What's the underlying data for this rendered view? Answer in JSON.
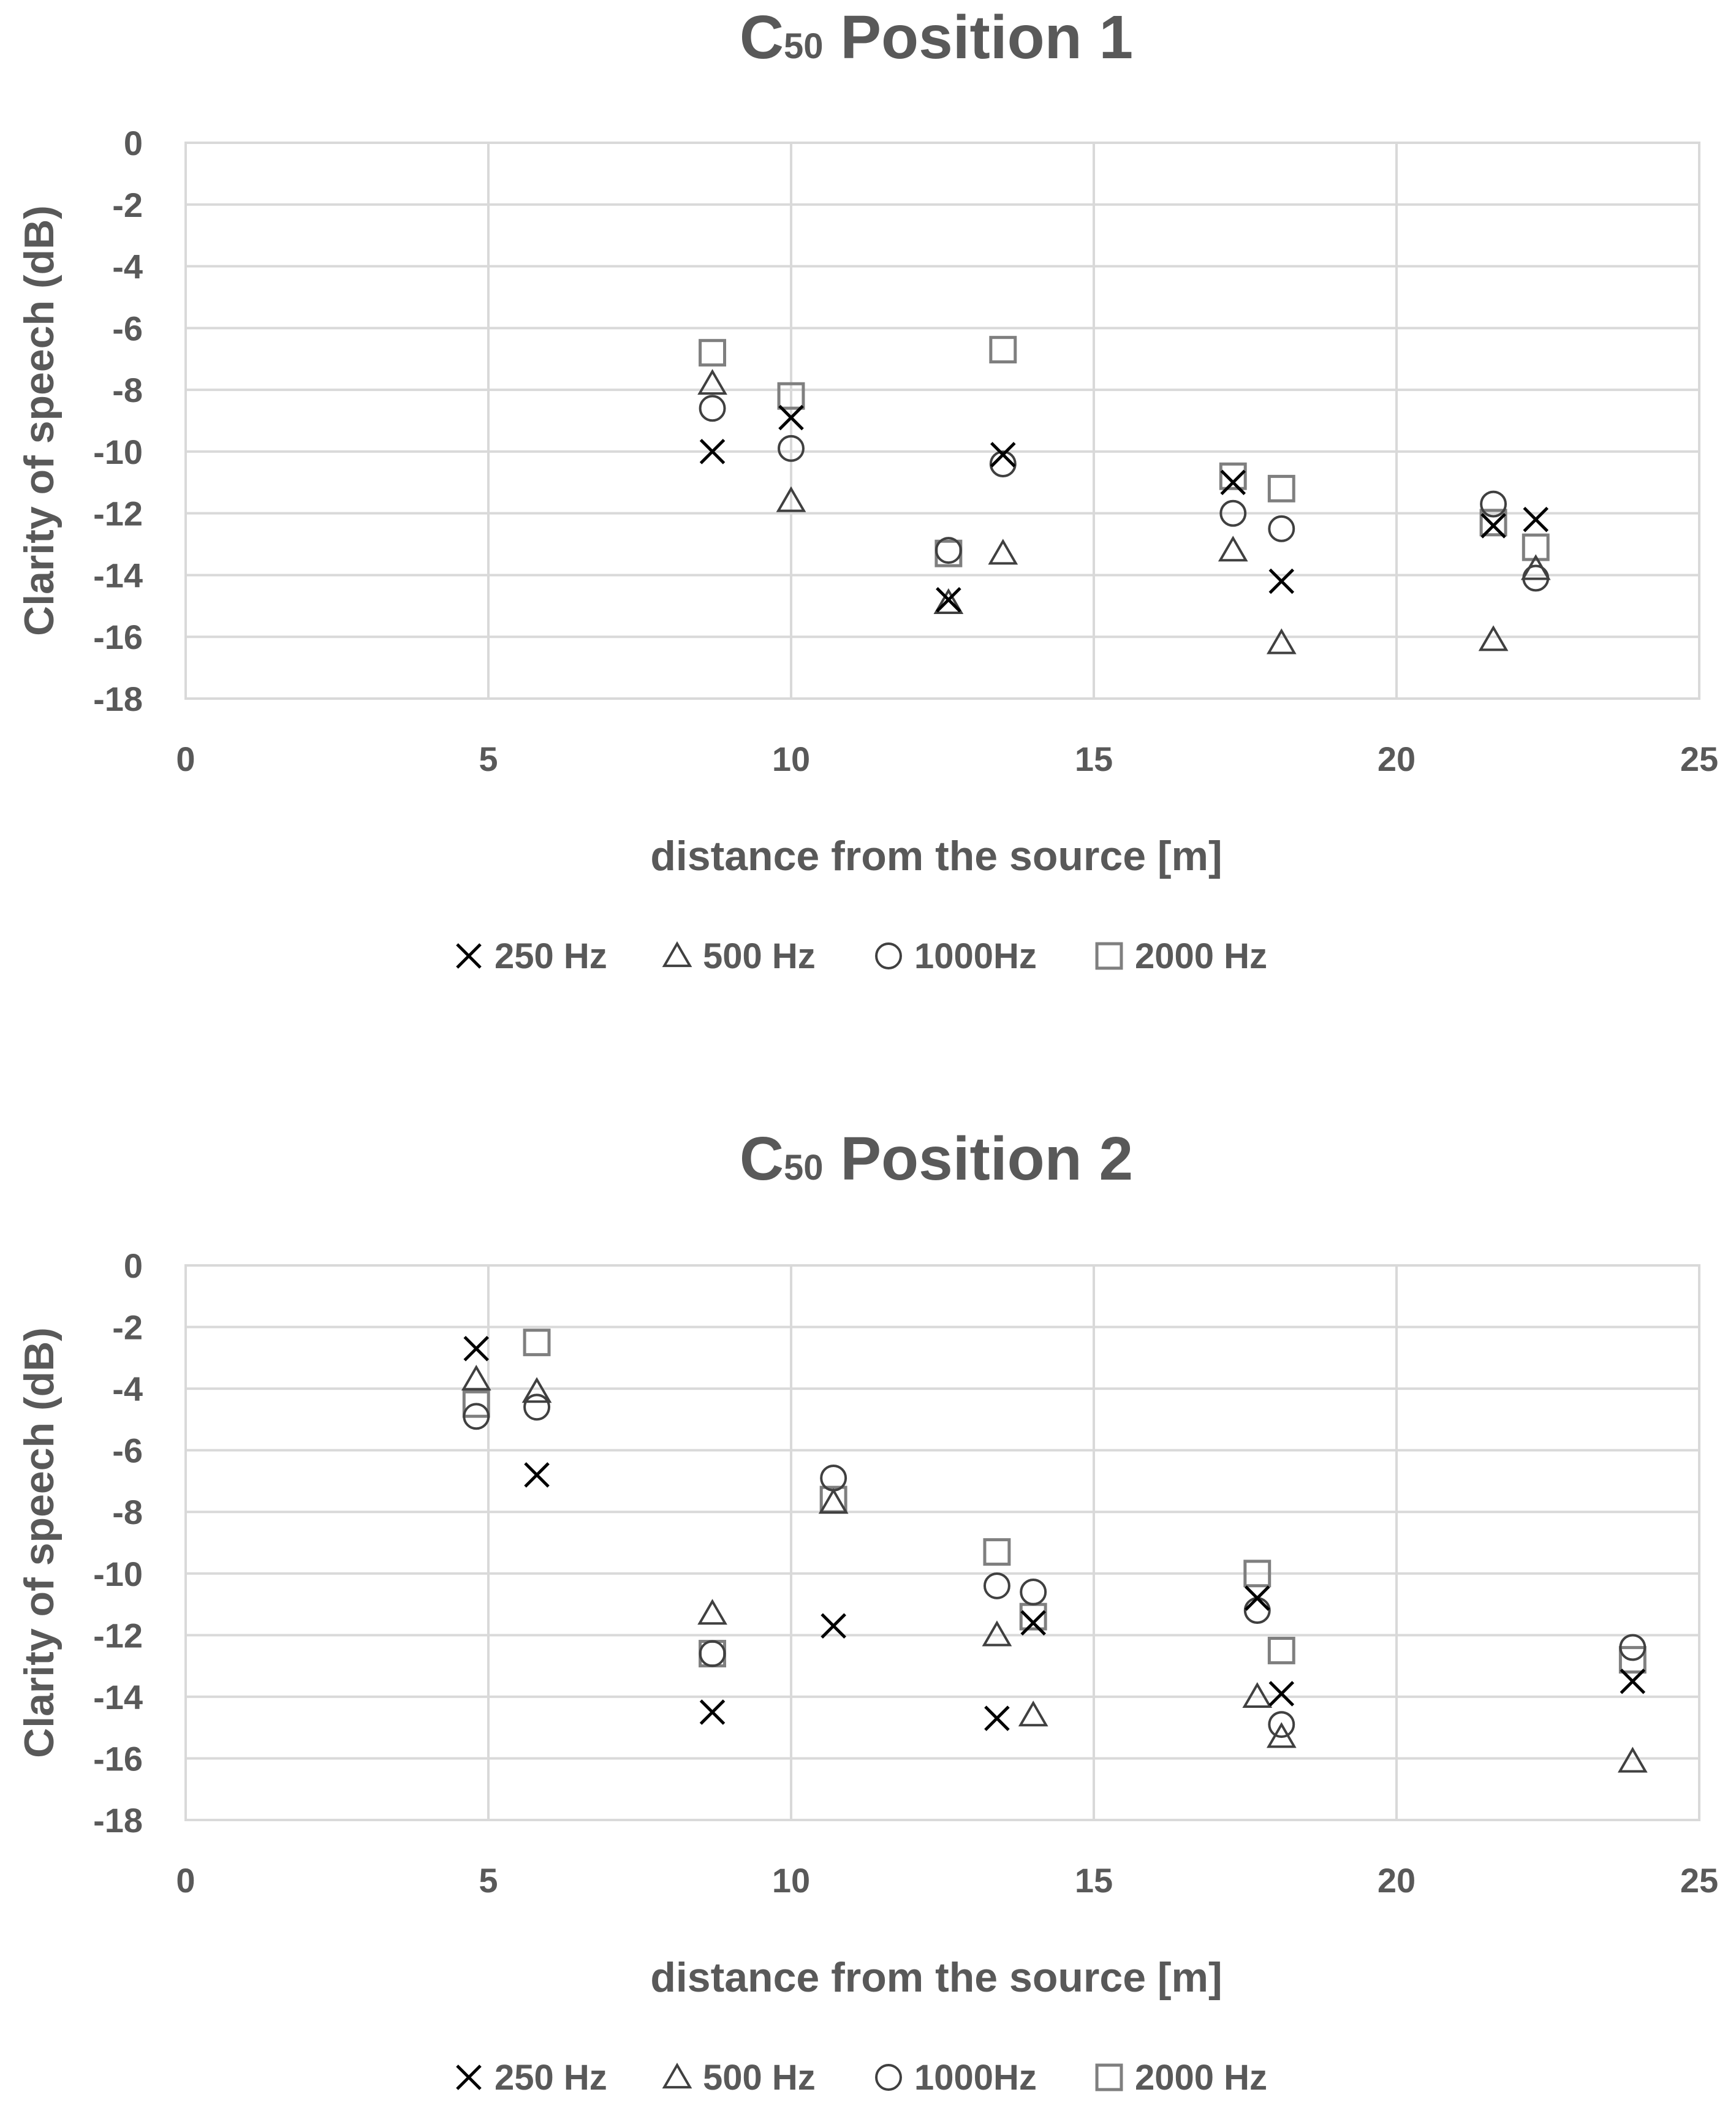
{
  "chart_data": [
    {
      "type": "scatter",
      "title": "C",
      "title_subscript": "50",
      "title_rest": " Position 1",
      "xlabel": "distance from the source [m]",
      "ylabel": "Clarity of speech (dB)",
      "xlim": [
        0,
        25
      ],
      "ylim": [
        -18,
        0
      ],
      "xticks": [
        "0",
        "5",
        "10",
        "15",
        "20",
        "25"
      ],
      "yticks": [
        "0",
        "-2",
        "-4",
        "-6",
        "-8",
        "-10",
        "-12",
        "-14",
        "-16",
        "-18"
      ],
      "grid": true,
      "legend": "bottom",
      "series": [
        {
          "name": "250 Hz",
          "marker": "x",
          "color": "#000000",
          "x": [
            8.7,
            10.0,
            12.6,
            13.5,
            17.3,
            18.1,
            21.6,
            22.3
          ],
          "y": [
            -10.0,
            -8.9,
            -14.8,
            -10.1,
            -11.0,
            -14.2,
            -12.4,
            -12.2
          ]
        },
        {
          "name": "500 Hz",
          "marker": "triangle",
          "color": "#404040",
          "x": [
            8.7,
            10.0,
            12.6,
            13.5,
            17.3,
            18.1,
            21.6,
            22.3
          ],
          "y": [
            -7.8,
            -11.6,
            -14.9,
            -13.3,
            -13.2,
            -16.2,
            -16.1,
            -13.8
          ]
        },
        {
          "name": "1000Hz",
          "marker": "circle",
          "color": "#404040",
          "x": [
            8.7,
            10.0,
            12.6,
            13.5,
            17.3,
            18.1,
            21.6,
            22.3
          ],
          "y": [
            -8.6,
            -9.9,
            -13.2,
            -10.4,
            -12.0,
            -12.5,
            -11.7,
            -14.1
          ]
        },
        {
          "name": "2000 Hz",
          "marker": "square",
          "color": "#7f7f7f",
          "x": [
            8.7,
            10.0,
            12.6,
            13.5,
            17.3,
            18.1,
            21.6,
            22.3
          ],
          "y": [
            -6.8,
            -8.2,
            -13.3,
            -6.7,
            -10.8,
            -11.2,
            -12.3,
            -13.1
          ]
        }
      ]
    },
    {
      "type": "scatter",
      "title": "C",
      "title_subscript": "50",
      "title_rest": " Position 2",
      "xlabel": "distance from the source [m]",
      "ylabel": "Clarity of speech (dB)",
      "xlim": [
        0,
        25
      ],
      "ylim": [
        -18,
        0
      ],
      "xticks": [
        "0",
        "5",
        "10",
        "15",
        "20",
        "25"
      ],
      "yticks": [
        "0",
        "-2",
        "-4",
        "-6",
        "-8",
        "-10",
        "-12",
        "-14",
        "-16",
        "-18"
      ],
      "grid": true,
      "legend": "bottom",
      "series": [
        {
          "name": "250 Hz",
          "marker": "x",
          "color": "#000000",
          "x": [
            4.8,
            5.8,
            8.7,
            10.7,
            13.4,
            14.0,
            17.7,
            18.1,
            23.9
          ],
          "y": [
            -2.7,
            -6.8,
            -14.5,
            -11.7,
            -14.7,
            -11.6,
            -10.8,
            -13.9,
            -13.5
          ]
        },
        {
          "name": "500 Hz",
          "marker": "triangle",
          "color": "#404040",
          "x": [
            4.8,
            5.8,
            8.7,
            10.7,
            13.4,
            14.0,
            17.7,
            18.1,
            23.9
          ],
          "y": [
            -3.7,
            -4.1,
            -11.3,
            -7.7,
            -12.0,
            -14.6,
            -14.0,
            -15.3,
            -16.1
          ]
        },
        {
          "name": "1000Hz",
          "marker": "circle",
          "color": "#404040",
          "x": [
            4.8,
            5.8,
            8.7,
            10.7,
            13.4,
            14.0,
            17.7,
            18.1,
            23.9
          ],
          "y": [
            -4.9,
            -4.6,
            -12.6,
            -6.9,
            -10.4,
            -10.6,
            -11.2,
            -14.9,
            -12.4
          ]
        },
        {
          "name": "2000 Hz",
          "marker": "square",
          "color": "#7f7f7f",
          "x": [
            4.8,
            5.8,
            8.7,
            10.7,
            13.4,
            14.0,
            17.7,
            18.1,
            23.9
          ],
          "y": [
            -4.5,
            -2.5,
            -12.6,
            -7.6,
            -9.3,
            -11.4,
            -10.0,
            -12.5,
            -12.8
          ]
        }
      ]
    }
  ]
}
